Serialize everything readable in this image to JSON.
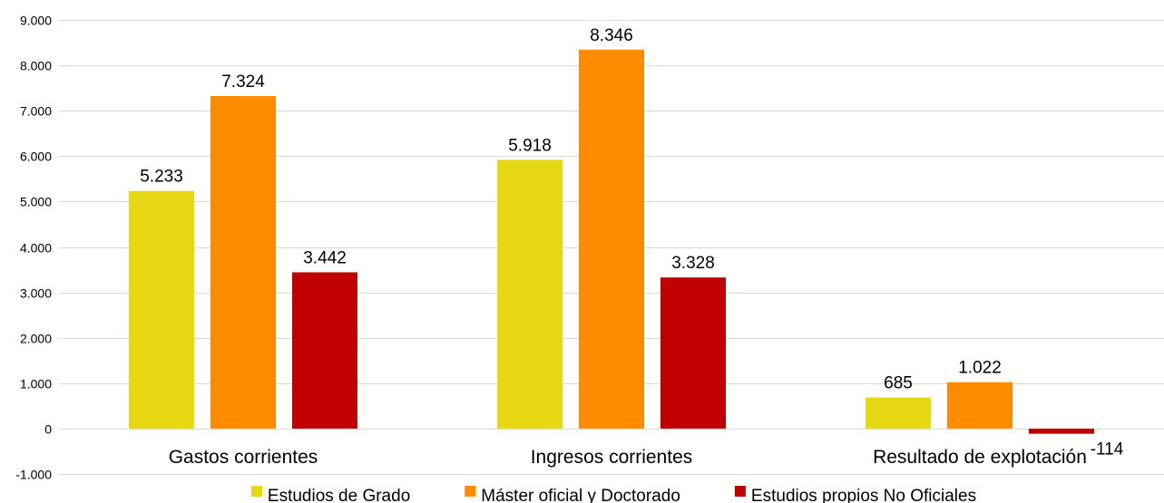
{
  "chart_data": {
    "type": "bar",
    "categories": [
      "Gastos corrientes",
      "Ingresos corrientes",
      "Resultado de explotación"
    ],
    "series": [
      {
        "name": "Estudios de Grado",
        "values": [
          5233,
          5918,
          685
        ],
        "labels": [
          "5.233",
          "5.918",
          "685"
        ],
        "color": "#e6d812"
      },
      {
        "name": "Máster oficial y Doctorado",
        "values": [
          7324,
          8346,
          1022
        ],
        "labels": [
          "7.324",
          "8.346",
          "1.022"
        ],
        "color": "#ff8c00"
      },
      {
        "name": "Estudios propios No Oficiales",
        "values": [
          3442,
          3328,
          -114
        ],
        "labels": [
          "3.442",
          "3.328",
          "-114"
        ],
        "color": "#c00000"
      }
    ],
    "ylim": [
      -1000,
      9000
    ],
    "yticks": [
      -1000,
      0,
      1000,
      2000,
      3000,
      4000,
      5000,
      6000,
      7000,
      8000,
      9000
    ],
    "ytick_labels": [
      "-1.000",
      "0",
      "1.000",
      "2.000",
      "3.000",
      "4.000",
      "5.000",
      "6.000",
      "7.000",
      "8.000",
      "9.000"
    ],
    "grid": true,
    "legend_position": "bottom"
  }
}
